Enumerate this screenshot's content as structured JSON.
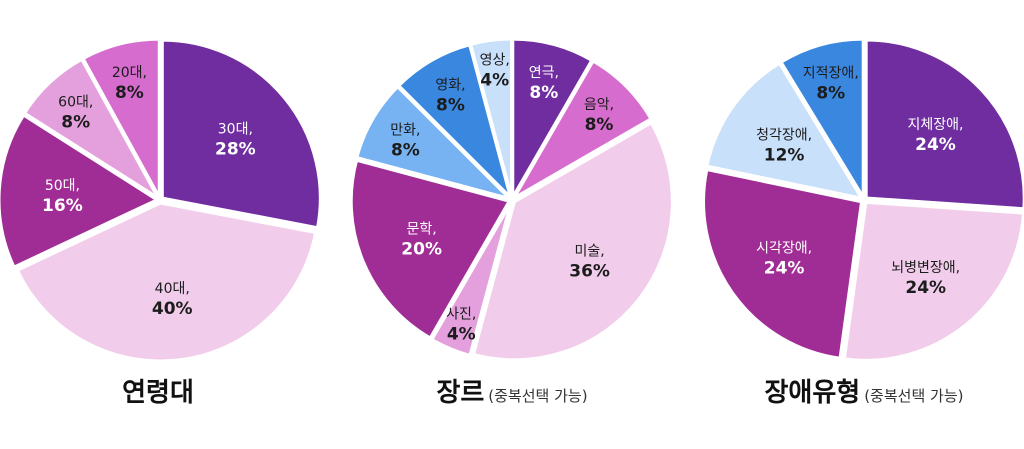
{
  "colors": {
    "dark_purple": "#6f2da0",
    "light_pink": "#f1cdeb",
    "magenta": "#a02d95",
    "orchid": "#d66ccd",
    "pink_lavender": "#e3a0dc",
    "light_blue": "#c9e0fb",
    "sky_blue": "#77b3f2",
    "blue": "#3a87e0",
    "white_text": "#ffffff",
    "dark_text": "#1c1c1c"
  },
  "chart_data": [
    {
      "type": "pie",
      "title": "연령대",
      "subtitle": "",
      "start": "12 o'clock, clockwise",
      "slices": [
        {
          "label": "30대,",
          "value": 28,
          "value_label": "28%",
          "color": "#6f2da0",
          "text_color": "light"
        },
        {
          "label": "40대,",
          "value": 40,
          "value_label": "40%",
          "color": "#f1cdeb",
          "text_color": "dark"
        },
        {
          "label": "50대,",
          "value": 16,
          "value_label": "16%",
          "color": "#a02d95",
          "text_color": "light"
        },
        {
          "label": "60대,",
          "value": 8,
          "value_label": "8%",
          "color": "#e3a0dc",
          "text_color": "dark"
        },
        {
          "label": "20대,",
          "value": 8,
          "value_label": "8%",
          "color": "#d66ccd",
          "text_color": "dark"
        }
      ]
    },
    {
      "type": "pie",
      "title": "장르",
      "subtitle": "(중복선택 가능)",
      "start": "12 o'clock, clockwise",
      "slices": [
        {
          "label": "연극,",
          "value": 8,
          "value_label": "8%",
          "color": "#6f2da0",
          "text_color": "light"
        },
        {
          "label": "음악,",
          "value": 8,
          "value_label": "8%",
          "color": "#d66ccd",
          "text_color": "dark"
        },
        {
          "label": "미술,",
          "value": 36,
          "value_label": "36%",
          "color": "#f1cdeb",
          "text_color": "dark"
        },
        {
          "label": "사진,",
          "value": 4,
          "value_label": "4%",
          "color": "#e3a0dc",
          "text_color": "dark"
        },
        {
          "label": "문학,",
          "value": 20,
          "value_label": "20%",
          "color": "#a02d95",
          "text_color": "light"
        },
        {
          "label": "만화,",
          "value": 8,
          "value_label": "8%",
          "color": "#77b3f2",
          "text_color": "dark"
        },
        {
          "label": "영화,",
          "value": 8,
          "value_label": "8%",
          "color": "#3a87e0",
          "text_color": "dark"
        },
        {
          "label": "영상,",
          "value": 4,
          "value_label": "4%",
          "color": "#c9e0fb",
          "text_color": "dark"
        }
      ]
    },
    {
      "type": "pie",
      "title": "장애유형",
      "subtitle": "(중복선택 가능)",
      "start": "12 o'clock, clockwise",
      "slices": [
        {
          "label": "지체장애,",
          "value": 24,
          "value_label": "24%",
          "color": "#6f2da0",
          "text_color": "light"
        },
        {
          "label": "뇌병변장애,",
          "value": 24,
          "value_label": "24%",
          "color": "#f1cdeb",
          "text_color": "dark"
        },
        {
          "label": "시각장애,",
          "value": 24,
          "value_label": "24%",
          "color": "#a02d95",
          "text_color": "light"
        },
        {
          "label": "청각장애,",
          "value": 12,
          "value_label": "12%",
          "color": "#c9e0fb",
          "text_color": "dark"
        },
        {
          "label": "지적장애,",
          "value": 8,
          "value_label": "8%",
          "color": "#3a87e0",
          "text_color": "dark"
        }
      ]
    }
  ]
}
